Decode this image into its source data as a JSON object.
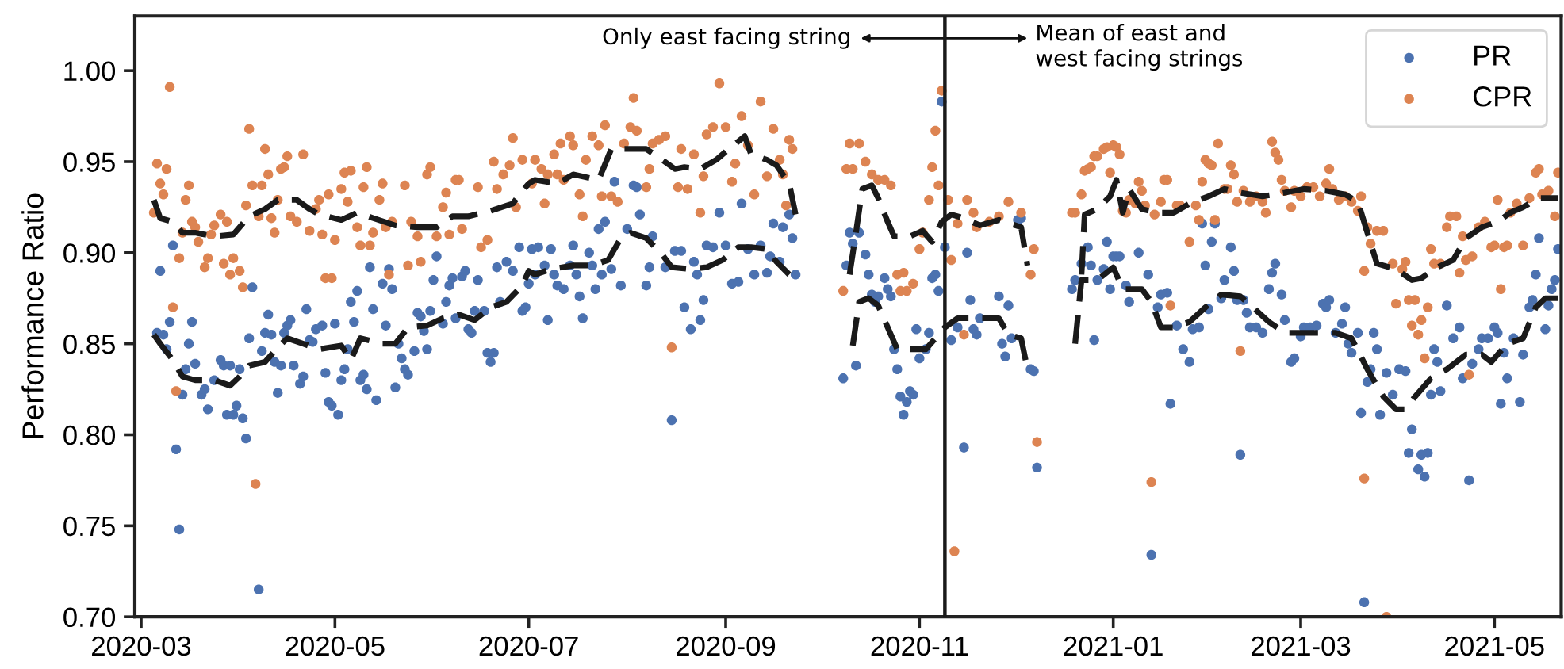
{
  "chart_data": {
    "type": "scatter",
    "ylabel": "Performance Ratio",
    "xlim": [
      "2020-02-28",
      "2021-05-22"
    ],
    "ylim": [
      0.7,
      1.03
    ],
    "xticks": [
      "2020-03",
      "2020-05",
      "2020-07",
      "2020-09",
      "2020-11",
      "2021-01",
      "2021-03",
      "2021-05"
    ],
    "yticks": [
      {
        "value": 0.7,
        "label": "0.70"
      },
      {
        "value": 0.75,
        "label": "0.75"
      },
      {
        "value": 0.8,
        "label": "0.80"
      },
      {
        "value": 0.85,
        "label": "0.85"
      },
      {
        "value": 0.9,
        "label": "0.90"
      },
      {
        "value": 0.95,
        "label": "0.95"
      },
      {
        "value": 1.0,
        "label": "1.00"
      }
    ],
    "legend": "top right",
    "ref_lines": [
      {
        "axis": "x",
        "value": "2020-11-09",
        "label": null,
        "color": "#1a1a1a"
      }
    ],
    "annotations": [
      "Only east facing string",
      "Mean of east and\nwest facing strings"
    ],
    "series": [
      {
        "name": "PR",
        "marker": "circle",
        "color": "#4c72b0",
        "x": [
          "2020-03-06",
          "2020-03-07",
          "2020-03-08",
          "2020-03-09",
          "2020-03-10",
          "2020-03-11",
          "2020-03-12",
          "2020-03-13",
          "2020-03-14",
          "2020-03-15",
          "2020-03-16",
          "2020-03-17",
          "2020-03-18",
          "2020-03-20",
          "2020-03-21",
          "2020-03-22",
          "2020-03-24",
          "2020-03-26",
          "2020-03-27",
          "2020-03-28",
          "2020-03-29",
          "2020-03-30",
          "2020-03-31",
          "2020-04-01",
          "2020-04-02",
          "2020-04-03",
          "2020-04-04",
          "2020-04-05",
          "2020-04-07",
          "2020-04-08",
          "2020-04-09",
          "2020-04-10",
          "2020-04-11",
          "2020-04-12",
          "2020-04-13",
          "2020-04-14",
          "2020-04-15",
          "2020-04-16",
          "2020-04-17",
          "2020-04-18",
          "2020-04-20",
          "2020-04-21",
          "2020-04-22",
          "2020-04-23",
          "2020-04-24",
          "2020-04-25",
          "2020-04-27",
          "2020-04-28",
          "2020-04-29",
          "2020-04-30",
          "2020-05-01",
          "2020-05-02",
          "2020-05-03",
          "2020-05-04",
          "2020-05-05",
          "2020-05-06",
          "2020-05-07",
          "2020-05-08",
          "2020-05-09",
          "2020-05-10",
          "2020-05-11",
          "2020-05-12",
          "2020-05-13",
          "2020-05-14",
          "2020-05-16",
          "2020-05-17",
          "2020-05-18",
          "2020-05-19",
          "2020-05-20",
          "2020-05-21",
          "2020-05-22",
          "2020-05-23",
          "2020-05-24",
          "2020-05-26",
          "2020-05-27",
          "2020-05-28",
          "2020-05-29",
          "2020-05-30",
          "2020-05-31",
          "2020-06-01",
          "2020-06-02",
          "2020-06-04",
          "2020-06-05",
          "2020-06-06",
          "2020-06-07",
          "2020-06-08",
          "2020-06-10",
          "2020-06-11",
          "2020-06-12",
          "2020-06-13",
          "2020-06-14",
          "2020-06-15",
          "2020-06-17",
          "2020-06-18",
          "2020-06-19",
          "2020-06-20",
          "2020-06-21",
          "2020-06-22",
          "2020-06-24",
          "2020-06-26",
          "2020-06-28",
          "2020-06-29",
          "2020-06-30",
          "2020-07-01",
          "2020-07-02",
          "2020-07-03",
          "2020-07-04",
          "2020-07-06",
          "2020-07-07",
          "2020-07-08",
          "2020-07-09",
          "2020-07-10",
          "2020-07-12",
          "2020-07-14",
          "2020-07-15",
          "2020-07-16",
          "2020-07-17",
          "2020-07-18",
          "2020-07-20",
          "2020-07-21",
          "2020-07-22",
          "2020-07-23",
          "2020-07-24",
          "2020-07-25",
          "2020-07-27",
          "2020-07-28",
          "2020-07-30",
          "2020-08-01",
          "2020-08-03",
          "2020-08-04",
          "2020-08-05",
          "2020-08-07",
          "2020-08-08",
          "2020-08-09",
          "2020-08-13",
          "2020-08-15",
          "2020-08-16",
          "2020-08-18",
          "2020-08-19",
          "2020-08-21",
          "2020-08-22",
          "2020-08-23",
          "2020-08-24",
          "2020-08-25",
          "2020-08-26",
          "2020-08-28",
          "2020-08-30",
          "2020-09-01",
          "2020-09-03",
          "2020-09-05",
          "2020-09-06",
          "2020-09-08",
          "2020-09-10",
          "2020-09-12",
          "2020-09-14",
          "2020-09-15",
          "2020-09-16",
          "2020-09-18",
          "2020-09-19",
          "2020-09-21",
          "2020-09-22",
          "2020-09-23",
          "2020-10-08",
          "2020-10-09",
          "2020-10-10",
          "2020-10-11",
          "2020-10-12",
          "2020-10-13",
          "2020-10-15",
          "2020-10-16",
          "2020-10-17",
          "2020-10-18",
          "2020-10-19",
          "2020-10-21",
          "2020-10-22",
          "2020-10-23",
          "2020-10-24",
          "2020-10-25",
          "2020-10-26",
          "2020-10-27",
          "2020-10-28",
          "2020-10-29",
          "2020-10-30",
          "2020-10-31",
          "2020-11-01",
          "2020-11-03",
          "2020-11-04",
          "2020-11-05",
          "2020-11-06",
          "2020-11-07",
          "2020-11-08",
          "2020-11-09",
          "2020-11-11",
          "2020-11-13",
          "2020-11-15",
          "2020-11-16",
          "2020-11-17",
          "2020-11-18",
          "2020-11-19",
          "2020-11-20",
          "2020-11-26",
          "2020-11-27",
          "2020-11-28",
          "2020-11-29",
          "2020-11-30",
          "2020-12-02",
          "2020-12-03",
          "2020-12-06",
          "2020-12-07",
          "2020-12-08",
          "2020-12-19",
          "2020-12-20",
          "2020-12-22",
          "2020-12-24",
          "2020-12-25",
          "2020-12-26",
          "2020-12-27",
          "2020-12-29",
          "2020-12-30",
          "2020-12-31",
          "2021-01-01",
          "2021-01-02",
          "2021-01-03",
          "2021-01-05",
          "2021-01-06",
          "2021-01-09",
          "2021-01-12",
          "2021-01-13",
          "2021-01-15",
          "2021-01-16",
          "2021-01-18",
          "2021-01-19",
          "2021-01-21",
          "2021-01-23",
          "2021-01-25",
          "2021-01-26",
          "2021-01-28",
          "2021-01-29",
          "2021-01-30",
          "2021-01-31",
          "2021-02-01",
          "2021-02-02",
          "2021-02-04",
          "2021-02-05",
          "2021-02-07",
          "2021-02-08",
          "2021-02-09",
          "2021-02-10",
          "2021-02-11",
          "2021-02-12",
          "2021-02-13",
          "2021-02-15",
          "2021-02-17",
          "2021-02-19",
          "2021-02-20",
          "2021-02-21",
          "2021-02-23",
          "2021-02-24",
          "2021-02-26",
          "2021-02-27",
          "2021-03-01",
          "2021-03-02",
          "2021-03-04",
          "2021-03-06",
          "2021-03-08",
          "2021-03-09",
          "2021-03-10",
          "2021-03-12",
          "2021-03-14",
          "2021-03-15",
          "2021-03-16",
          "2021-03-17",
          "2021-03-19",
          "2021-03-20",
          "2021-03-21",
          "2021-03-22",
          "2021-03-23",
          "2021-03-24",
          "2021-03-25",
          "2021-03-26",
          "2021-03-28",
          "2021-03-30",
          "2021-04-01",
          "2021-04-03",
          "2021-04-04",
          "2021-04-05",
          "2021-04-07",
          "2021-04-08",
          "2021-04-09",
          "2021-04-10",
          "2021-04-11",
          "2021-04-12",
          "2021-04-13",
          "2021-04-14",
          "2021-04-16",
          "2021-04-18",
          "2021-04-20",
          "2021-04-21",
          "2021-04-23",
          "2021-04-24",
          "2021-04-26",
          "2021-04-27",
          "2021-04-29",
          "2021-05-01",
          "2021-05-02",
          "2021-05-03",
          "2021-05-04",
          "2021-05-05",
          "2021-05-07",
          "2021-05-09",
          "2021-05-10",
          "2021-05-12",
          "2021-05-13",
          "2021-05-14",
          "2021-05-15",
          "2021-05-17",
          "2021-05-18",
          "2021-05-19",
          "2021-05-20",
          "2021-05-21"
        ],
        "values": [
          0.856,
          0.89,
          0.855,
          0.847,
          0.862,
          0.904,
          0.792,
          0.748,
          0.822,
          0.836,
          0.85,
          0.862,
          0.839,
          0.822,
          0.825,
          0.814,
          0.83,
          0.841,
          0.838,
          0.811,
          0.838,
          0.811,
          0.816,
          0.836,
          0.809,
          0.798,
          0.853,
          0.881,
          0.715,
          0.846,
          0.856,
          0.866,
          0.855,
          0.84,
          0.823,
          0.838,
          0.856,
          0.86,
          0.863,
          0.838,
          0.828,
          0.832,
          0.869,
          0.852,
          0.851,
          0.858,
          0.86,
          0.834,
          0.818,
          0.816,
          0.861,
          0.811,
          0.83,
          0.836,
          0.847,
          0.873,
          0.862,
          0.879,
          0.83,
          0.833,
          0.825,
          0.892,
          0.869,
          0.819,
          0.883,
          0.86,
          0.891,
          0.88,
          0.826,
          0.85,
          0.842,
          0.836,
          0.833,
          0.846,
          0.867,
          0.865,
          0.857,
          0.847,
          0.868,
          0.885,
          0.898,
          0.861,
          0.873,
          0.882,
          0.886,
          0.864,
          0.887,
          0.89,
          0.858,
          0.856,
          0.868,
          0.885,
          0.868,
          0.845,
          0.84,
          0.845,
          0.892,
          0.873,
          0.895,
          0.89,
          0.903,
          0.868,
          0.87,
          0.883,
          0.902,
          0.888,
          0.903,
          0.893,
          0.863,
          0.902,
          0.888,
          0.882,
          0.88,
          0.893,
          0.904,
          0.888,
          0.876,
          0.864,
          0.9,
          0.893,
          0.88,
          0.913,
          0.888,
          0.917,
          0.891,
          0.939,
          0.882,
          0.913,
          0.937,
          0.936,
          0.921,
          0.882,
          0.892,
          0.909,
          0.892,
          0.808,
          0.901,
          0.901,
          0.87,
          0.858,
          0.895,
          0.888,
          0.863,
          0.874,
          0.904,
          0.903,
          0.922,
          0.904,
          0.883,
          0.884,
          0.927,
          0.902,
          0.888,
          0.904,
          0.889,
          0.898,
          0.916,
          0.895,
          0.914,
          0.921,
          0.908,
          0.888,
          0.831,
          0.893,
          0.911,
          0.905,
          0.838,
          0.911,
          0.899,
          0.888,
          0.877,
          0.873,
          0.876,
          0.886,
          0.88,
          0.876,
          0.847,
          0.836,
          0.821,
          0.811,
          0.818,
          0.824,
          0.822,
          0.858,
          0.842,
          0.847,
          0.856,
          0.886,
          0.888,
          0.879,
          0.983,
          0.903,
          0.852,
          0.859,
          0.793,
          0.9,
          0.874,
          0.858,
          0.855,
          0.864,
          0.876,
          0.85,
          0.843,
          0.871,
          0.853,
          0.918,
          0.919,
          0.836,
          0.835,
          0.782,
          0.88,
          0.885,
          0.894,
          0.903,
          0.893,
          0.852,
          0.885,
          0.891,
          0.906,
          0.88,
          0.898,
          0.898,
          0.898,
          0.882,
          0.873,
          0.9,
          0.888,
          0.734,
          0.87,
          0.877,
          0.878,
          0.817,
          0.86,
          0.847,
          0.84,
          0.858,
          0.859,
          0.916,
          0.893,
          0.869,
          0.906,
          0.916,
          0.875,
          0.885,
          0.903,
          0.89,
          0.874,
          0.789,
          0.874,
          0.867,
          0.859,
          0.859,
          0.856,
          0.88,
          0.889,
          0.894,
          0.877,
          0.863,
          0.84,
          0.842,
          0.854,
          0.859,
          0.859,
          0.86,
          0.872,
          0.87,
          0.874,
          0.856,
          0.861,
          0.87,
          0.85,
          0.845,
          0.856,
          0.812,
          0.708,
          0.829,
          0.836,
          0.856,
          0.847,
          0.811,
          0.834,
          0.822,
          0.836,
          0.835,
          0.79,
          0.803,
          0.781,
          0.789,
          0.777,
          0.79,
          0.822,
          0.847,
          0.84,
          0.824,
          0.871,
          0.853,
          0.859,
          0.831,
          0.775,
          0.839,
          0.847,
          0.853,
          0.853,
          0.859,
          0.856,
          0.817,
          0.845,
          0.831,
          0.853,
          0.818,
          0.844,
          0.87,
          0.874,
          0.888,
          0.908,
          0.858,
          0.871,
          0.88,
          0.885,
          0.902
        ]
      },
      {
        "name": "CPR",
        "marker": "circle",
        "color": "#dd8452",
        "x": [
          "2020-03-05",
          "2020-03-06",
          "2020-03-07",
          "2020-03-08",
          "2020-03-09",
          "2020-03-10",
          "2020-03-11",
          "2020-03-12",
          "2020-03-13",
          "2020-03-14",
          "2020-03-15",
          "2020-03-16",
          "2020-03-17",
          "2020-03-18",
          "2020-03-19",
          "2020-03-21",
          "2020-03-22",
          "2020-03-23",
          "2020-03-24",
          "2020-03-26",
          "2020-03-27",
          "2020-03-28",
          "2020-03-29",
          "2020-03-30",
          "2020-04-01",
          "2020-04-02",
          "2020-04-03",
          "2020-04-04",
          "2020-04-05",
          "2020-04-06",
          "2020-04-07",
          "2020-04-08",
          "2020-04-09",
          "2020-04-10",
          "2020-04-11",
          "2020-04-12",
          "2020-04-13",
          "2020-04-14",
          "2020-04-15",
          "2020-04-16",
          "2020-04-17",
          "2020-04-19",
          "2020-04-21",
          "2020-04-23",
          "2020-04-25",
          "2020-04-26",
          "2020-04-27",
          "2020-04-28",
          "2020-04-29",
          "2020-04-30",
          "2020-05-01",
          "2020-05-03",
          "2020-05-04",
          "2020-05-05",
          "2020-05-06",
          "2020-05-08",
          "2020-05-09",
          "2020-05-10",
          "2020-05-11",
          "2020-05-12",
          "2020-05-13",
          "2020-05-15",
          "2020-05-16",
          "2020-05-17",
          "2020-05-18",
          "2020-05-19",
          "2020-05-23",
          "2020-05-24",
          "2020-05-25",
          "2020-05-27",
          "2020-05-28",
          "2020-05-30",
          "2020-05-31",
          "2020-06-02",
          "2020-06-04",
          "2020-06-05",
          "2020-06-06",
          "2020-06-08",
          "2020-06-09",
          "2020-06-10",
          "2020-06-15",
          "2020-06-16",
          "2020-06-18",
          "2020-06-20",
          "2020-06-21",
          "2020-06-23",
          "2020-06-25",
          "2020-06-26",
          "2020-06-27",
          "2020-06-29",
          "2020-07-02",
          "2020-07-03",
          "2020-07-05",
          "2020-07-06",
          "2020-07-07",
          "2020-07-09",
          "2020-07-10",
          "2020-07-11",
          "2020-07-12",
          "2020-07-14",
          "2020-07-15",
          "2020-07-17",
          "2020-07-18",
          "2020-07-19",
          "2020-07-21",
          "2020-07-23",
          "2020-07-24",
          "2020-07-25",
          "2020-07-27",
          "2020-07-29",
          "2020-07-31",
          "2020-08-02",
          "2020-08-03",
          "2020-08-04",
          "2020-08-07",
          "2020-08-08",
          "2020-08-09",
          "2020-08-11",
          "2020-08-13",
          "2020-08-15",
          "2020-08-17",
          "2020-08-18",
          "2020-08-20",
          "2020-08-22",
          "2020-08-24",
          "2020-08-25",
          "2020-08-26",
          "2020-08-28",
          "2020-08-30",
          "2020-09-01",
          "2020-09-03",
          "2020-09-04",
          "2020-09-06",
          "2020-09-08",
          "2020-09-10",
          "2020-09-12",
          "2020-09-14",
          "2020-09-16",
          "2020-09-18",
          "2020-09-19",
          "2020-09-20",
          "2020-09-21",
          "2020-09-22",
          "2020-10-08",
          "2020-10-09",
          "2020-10-10",
          "2020-10-11",
          "2020-10-13",
          "2020-10-15",
          "2020-10-17",
          "2020-10-19",
          "2020-10-21",
          "2020-10-23",
          "2020-10-25",
          "2020-10-26",
          "2020-10-27",
          "2020-10-28",
          "2020-10-30",
          "2020-11-01",
          "2020-11-02",
          "2020-11-04",
          "2020-11-05",
          "2020-11-06",
          "2020-11-07",
          "2020-11-08",
          "2020-11-10",
          "2020-11-11",
          "2020-11-12",
          "2020-11-13",
          "2020-11-15",
          "2020-11-16",
          "2020-11-18",
          "2020-11-19",
          "2020-11-23",
          "2020-11-26",
          "2020-11-29",
          "2020-12-03",
          "2020-12-06",
          "2020-12-07",
          "2020-12-08",
          "2020-12-19",
          "2020-12-20",
          "2020-12-22",
          "2020-12-23",
          "2020-12-24",
          "2020-12-25",
          "2020-12-26",
          "2020-12-27",
          "2020-12-29",
          "2020-12-30",
          "2020-12-31",
          "2021-01-01",
          "2021-01-02",
          "2021-01-03",
          "2021-01-04",
          "2021-01-05",
          "2021-01-06",
          "2021-01-08",
          "2021-01-09",
          "2021-01-10",
          "2021-01-11",
          "2021-01-13",
          "2021-01-14",
          "2021-01-16",
          "2021-01-17",
          "2021-01-18",
          "2021-01-19",
          "2021-01-21",
          "2021-01-22",
          "2021-01-25",
          "2021-01-27",
          "2021-01-28",
          "2021-01-29",
          "2021-01-30",
          "2021-01-31",
          "2021-02-01",
          "2021-02-02",
          "2021-02-03",
          "2021-02-05",
          "2021-02-06",
          "2021-02-07",
          "2021-02-08",
          "2021-02-09",
          "2021-02-10",
          "2021-02-11",
          "2021-02-13",
          "2021-02-15",
          "2021-02-17",
          "2021-02-18",
          "2021-02-20",
          "2021-02-21",
          "2021-02-22",
          "2021-02-23",
          "2021-02-24",
          "2021-02-26",
          "2021-02-27",
          "2021-03-01",
          "2021-03-03",
          "2021-03-05",
          "2021-03-07",
          "2021-03-09",
          "2021-03-10",
          "2021-03-11",
          "2021-03-13",
          "2021-03-15",
          "2021-03-17",
          "2021-03-19",
          "2021-03-20",
          "2021-03-21",
          "2021-03-21",
          "2021-03-22",
          "2021-03-23",
          "2021-03-25",
          "2021-03-27",
          "2021-03-28",
          "2021-03-30",
          "2021-03-31",
          "2021-04-02",
          "2021-04-03",
          "2021-04-04",
          "2021-04-05",
          "2021-04-06",
          "2021-04-07",
          "2021-04-08",
          "2021-04-09",
          "2021-04-10",
          "2021-04-11",
          "2021-04-12",
          "2021-04-14",
          "2021-04-16",
          "2021-04-17",
          "2021-04-19",
          "2021-04-20",
          "2021-04-21",
          "2021-04-22",
          "2021-04-23",
          "2021-04-24",
          "2021-04-26",
          "2021-04-28",
          "2021-04-30",
          "2021-05-01",
          "2021-05-02",
          "2021-05-03",
          "2021-05-04",
          "2021-05-05",
          "2021-05-06",
          "2021-05-08",
          "2021-05-10",
          "2021-05-12",
          "2021-05-14",
          "2021-05-15",
          "2021-05-16",
          "2021-05-18",
          "2021-05-20",
          "2021-05-21"
        ],
        "values": [
          0.922,
          0.949,
          0.938,
          0.932,
          0.946,
          0.991,
          0.87,
          0.824,
          0.897,
          0.911,
          0.929,
          0.937,
          0.917,
          0.914,
          0.906,
          0.892,
          0.897,
          0.91,
          0.915,
          0.921,
          0.894,
          0.917,
          0.888,
          0.897,
          0.89,
          0.881,
          0.926,
          0.968,
          0.937,
          0.773,
          0.92,
          0.937,
          0.957,
          0.943,
          0.919,
          0.911,
          0.929,
          0.946,
          0.947,
          0.953,
          0.92,
          0.917,
          0.954,
          0.912,
          0.924,
          0.929,
          0.91,
          0.886,
          0.932,
          0.886,
          0.907,
          0.935,
          0.944,
          0.928,
          0.945,
          0.914,
          0.904,
          0.936,
          0.947,
          0.904,
          0.911,
          0.929,
          0.938,
          0.914,
          0.888,
          0.917,
          0.937,
          0.893,
          0.917,
          0.909,
          0.895,
          0.943,
          0.947,
          0.909,
          0.925,
          0.933,
          0.91,
          0.94,
          0.94,
          0.913,
          0.936,
          0.903,
          0.907,
          0.95,
          0.935,
          0.943,
          0.948,
          0.963,
          0.925,
          0.951,
          0.938,
          0.951,
          0.946,
          0.927,
          0.943,
          0.954,
          0.943,
          0.96,
          0.94,
          0.964,
          0.959,
          0.932,
          0.92,
          0.951,
          0.964,
          0.959,
          0.931,
          0.97,
          0.931,
          0.928,
          0.96,
          0.969,
          0.985,
          0.967,
          0.936,
          0.946,
          0.96,
          0.962,
          0.964,
          0.848,
          0.936,
          0.957,
          0.935,
          0.954,
          0.922,
          0.942,
          0.965,
          0.969,
          0.993,
          0.969,
          0.939,
          0.949,
          0.975,
          0.959,
          0.932,
          0.983,
          0.942,
          0.968,
          0.951,
          0.943,
          0.926,
          0.962,
          0.957,
          0.879,
          0.946,
          0.96,
          0.946,
          0.96,
          0.95,
          0.943,
          0.94,
          0.94,
          0.937,
          0.888,
          0.879,
          0.889,
          0.879,
          0.883,
          0.902,
          0.911,
          0.929,
          0.947,
          0.967,
          0.937,
          0.989,
          0.929,
          0.896,
          0.736,
          0.916,
          0.855,
          0.929,
          0.922,
          0.914,
          0.917,
          0.92,
          0.928,
          0.922,
          0.888,
          0.902,
          0.796,
          0.922,
          0.922,
          0.932,
          0.945,
          0.946,
          0.947,
          0.953,
          0.953,
          0.957,
          0.958,
          0.944,
          0.959,
          0.958,
          0.954,
          0.923,
          0.922,
          0.929,
          0.927,
          0.939,
          0.934,
          0.926,
          0.774,
          0.921,
          0.928,
          0.94,
          0.94,
          0.871,
          0.926,
          0.926,
          0.906,
          0.926,
          0.918,
          0.939,
          0.951,
          0.949,
          0.948,
          0.918,
          0.96,
          0.935,
          0.935,
          0.948,
          0.943,
          0.928,
          0.846,
          0.934,
          0.928,
          0.931,
          0.928,
          0.922,
          0.961,
          0.955,
          0.951,
          0.94,
          0.934,
          0.925,
          0.934,
          0.931,
          0.936,
          0.936,
          0.931,
          0.938,
          0.946,
          0.935,
          0.929,
          0.931,
          0.928,
          0.923,
          0.931,
          0.89,
          0.776,
          0.914,
          0.905,
          0.912,
          0.912,
          0.7,
          0.894,
          0.872,
          0.891,
          0.895,
          0.874,
          0.86,
          0.874,
          0.855,
          0.863,
          0.842,
          0.87,
          0.902,
          0.894,
          0.894,
          0.914,
          0.92,
          0.92,
          0.889,
          0.909,
          0.896,
          0.833,
          0.898,
          0.914,
          0.917,
          0.903,
          0.904,
          0.929,
          0.88,
          0.903,
          0.904,
          0.922,
          0.927,
          0.904,
          0.93,
          0.944,
          0.946,
          0.932,
          0.934,
          0.92,
          0.944
        ]
      },
      {
        "type": "line",
        "line_style": "dashed",
        "color": "#1a1a1a",
        "x": [
          "2020-03-05",
          "2020-03-07",
          "2020-03-11",
          "2020-03-14",
          "2020-03-18",
          "2020-03-24",
          "2020-03-30",
          "2020-04-01",
          "2020-04-04",
          "2020-04-09",
          "2020-04-13",
          "2020-04-19",
          "2020-04-23",
          "2020-04-26",
          "2020-05-03",
          "2020-05-08",
          "2020-05-13",
          "2020-05-20",
          "2020-05-27",
          "2020-06-02",
          "2020-06-07",
          "2020-06-12",
          "2020-06-19",
          "2020-06-26",
          "2020-06-29",
          "2020-07-01",
          "2020-07-03",
          "2020-07-10",
          "2020-07-15",
          "2020-07-23",
          "2020-07-27",
          "2020-08-02",
          "2020-08-07",
          "2020-08-12",
          "2020-08-16",
          "2020-08-19",
          "2020-08-24",
          "2020-08-29",
          "2020-09-02",
          "2020-09-07",
          "2020-09-09",
          "2020-09-14",
          "2020-09-17",
          "2020-09-21",
          "2020-09-23",
          "2020-10-01",
          "2020-10-10",
          "2020-10-12",
          "2020-10-14",
          "2020-10-17",
          "2020-10-19",
          "2020-10-22",
          "2020-10-24",
          "2020-10-29",
          "2020-11-02",
          "2020-11-05",
          "2020-11-08",
          "2020-11-11",
          "2020-11-15",
          "2020-11-20",
          "2020-11-26",
          "2020-12-03",
          "2020-12-05",
          "2020-12-14",
          "2020-12-22",
          "2020-12-23",
          "2020-12-27",
          "2020-12-31",
          "2021-01-02",
          "2021-01-04",
          "2021-01-06",
          "2021-01-10",
          "2021-01-15",
          "2021-01-20",
          "2021-01-25",
          "2021-01-31",
          "2021-02-05",
          "2021-02-10",
          "2021-02-17",
          "2021-02-24",
          "2021-03-02",
          "2021-03-09",
          "2021-03-15",
          "2021-03-19",
          "2021-03-22",
          "2021-03-25",
          "2021-03-31",
          "2021-04-05",
          "2021-04-08",
          "2021-04-13",
          "2021-04-18",
          "2021-04-22",
          "2021-04-27",
          "2021-05-02",
          "2021-05-06",
          "2021-05-10",
          "2021-05-15",
          "2021-05-21"
        ],
        "values": [
          0.929,
          0.919,
          0.917,
          0.911,
          0.911,
          0.909,
          0.91,
          0.914,
          0.92,
          0.924,
          0.929,
          0.929,
          0.924,
          0.921,
          0.918,
          0.922,
          0.919,
          0.915,
          0.914,
          0.914,
          0.92,
          0.92,
          0.923,
          0.927,
          0.934,
          0.938,
          0.94,
          0.938,
          0.943,
          0.94,
          0.957,
          0.957,
          0.957,
          0.951,
          0.946,
          0.947,
          0.946,
          0.951,
          0.957,
          0.964,
          0.954,
          0.951,
          0.948,
          0.938,
          0.921,
          null,
          0.888,
          0.911,
          0.935,
          0.937,
          0.93,
          0.917,
          0.909,
          0.909,
          0.912,
          0.906,
          0.917,
          0.921,
          0.919,
          0.915,
          0.918,
          0.914,
          0.893,
          null,
          0.888,
          0.921,
          0.924,
          0.931,
          0.94,
          0.922,
          0.935,
          0.924,
          0.922,
          0.922,
          0.927,
          0.931,
          0.935,
          0.933,
          0.931,
          0.933,
          0.935,
          0.934,
          0.932,
          0.928,
          0.911,
          0.894,
          0.891,
          0.885,
          0.886,
          0.892,
          0.896,
          0.908,
          0.914,
          0.917,
          0.922,
          0.925,
          0.93,
          0.93
        ]
      },
      {
        "type": "line",
        "line_style": "dashed",
        "color": "#1a1a1a",
        "x": [
          "2020-03-05",
          "2020-03-07",
          "2020-03-11",
          "2020-03-14",
          "2020-03-18",
          "2020-03-24",
          "2020-03-29",
          "2020-04-01",
          "2020-04-04",
          "2020-04-09",
          "2020-04-13",
          "2020-04-16",
          "2020-04-21",
          "2020-04-26",
          "2020-05-03",
          "2020-05-06",
          "2020-05-09",
          "2020-05-16",
          "2020-05-20",
          "2020-05-24",
          "2020-05-30",
          "2020-06-04",
          "2020-06-09",
          "2020-06-14",
          "2020-06-19",
          "2020-06-24",
          "2020-06-29",
          "2020-07-01",
          "2020-07-03",
          "2020-07-08",
          "2020-07-15",
          "2020-07-21",
          "2020-07-26",
          "2020-07-30",
          "2020-08-02",
          "2020-08-07",
          "2020-08-12",
          "2020-08-15",
          "2020-08-21",
          "2020-08-26",
          "2020-08-31",
          "2020-09-05",
          "2020-09-09",
          "2020-09-14",
          "2020-09-17",
          "2020-09-21",
          "2020-10-01",
          "2020-10-11",
          "2020-10-13",
          "2020-10-16",
          "2020-10-19",
          "2020-10-22",
          "2020-10-25",
          "2020-10-31",
          "2020-11-03",
          "2020-11-06",
          "2020-11-09",
          "2020-11-13",
          "2020-11-20",
          "2020-11-26",
          "2020-11-29",
          "2020-12-03",
          "2020-12-05",
          "2020-12-14",
          "2020-12-20",
          "2020-12-22",
          "2020-12-27",
          "2021-01-01",
          "2021-01-04",
          "2021-01-10",
          "2021-01-13",
          "2021-01-16",
          "2021-01-20",
          "2021-01-25",
          "2021-01-30",
          "2021-02-04",
          "2021-02-10",
          "2021-02-14",
          "2021-02-19",
          "2021-02-24",
          "2021-03-02",
          "2021-03-12",
          "2021-03-17",
          "2021-03-22",
          "2021-03-27",
          "2021-03-31",
          "2021-04-03",
          "2021-04-06",
          "2021-04-11",
          "2021-04-16",
          "2021-04-22",
          "2021-04-27",
          "2021-04-30",
          "2021-05-05",
          "2021-05-10",
          "2021-05-14",
          "2021-05-17",
          "2021-05-21"
        ],
        "values": [
          0.855,
          0.85,
          0.841,
          0.832,
          0.83,
          0.83,
          0.827,
          0.832,
          0.838,
          0.84,
          0.848,
          0.853,
          0.85,
          0.847,
          0.849,
          0.841,
          0.853,
          0.85,
          0.85,
          0.859,
          0.86,
          0.864,
          0.866,
          0.863,
          0.87,
          0.873,
          0.882,
          0.89,
          0.888,
          0.891,
          0.893,
          0.893,
          0.896,
          0.908,
          0.911,
          0.908,
          0.899,
          0.892,
          0.891,
          0.892,
          0.896,
          0.903,
          0.903,
          0.902,
          0.895,
          0.888,
          null,
          0.849,
          0.873,
          0.875,
          0.871,
          0.859,
          0.847,
          0.847,
          0.847,
          0.853,
          0.859,
          0.864,
          0.864,
          0.864,
          0.855,
          0.853,
          0.836,
          null,
          0.85,
          0.885,
          0.885,
          0.892,
          0.88,
          0.88,
          0.873,
          0.859,
          0.859,
          0.862,
          0.87,
          0.877,
          0.876,
          0.87,
          0.862,
          0.856,
          0.856,
          0.856,
          0.853,
          0.836,
          0.821,
          0.814,
          0.814,
          0.821,
          0.831,
          0.836,
          0.844,
          0.844,
          0.84,
          0.85,
          0.853,
          0.87,
          0.875,
          0.875
        ]
      }
    ]
  }
}
